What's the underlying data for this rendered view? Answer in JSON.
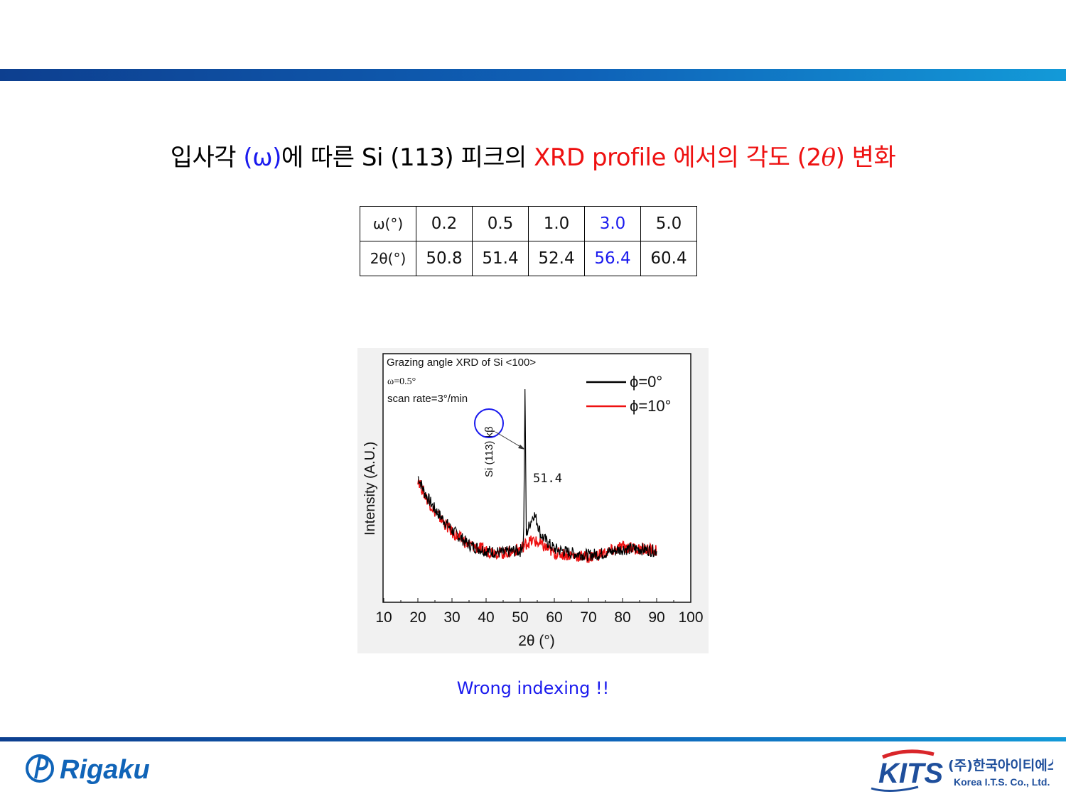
{
  "title": {
    "part1": "입사각 ",
    "omega": "(ω)",
    "part2": "에 따른 Si (113) 피크의 ",
    "red": "XRD profile 에서의 각도 (2",
    "theta": "θ",
    "red_end": ") 변화"
  },
  "table": {
    "rows": [
      {
        "label": "ω(°)",
        "cells": [
          "0.2",
          "0.5",
          "1.0",
          "3.0",
          "5.0"
        ]
      },
      {
        "label": "2θ(°)",
        "cells": [
          "50.8",
          "51.4",
          "52.4",
          "56.4",
          "60.4"
        ]
      }
    ],
    "highlight_color": "#1a1aee"
  },
  "chart_data": {
    "type": "line",
    "title": "Grazing angle XRD of Si <100>",
    "annotations": [
      "ω=0.5°",
      "scan rate=3°/min",
      "Si (113) kβ",
      "51.4"
    ],
    "xlabel": "2θ (°)",
    "ylabel": "Intensity (A.U.)",
    "xlim": [
      10,
      100
    ],
    "xticks": [
      10,
      20,
      30,
      40,
      50,
      60,
      70,
      80,
      90,
      100
    ],
    "legend": "top-right",
    "series": [
      {
        "name": "ϕ=0°",
        "color": "#000000",
        "x": [
          20,
          22,
          25,
          30,
          35,
          40,
          45,
          48,
          50,
          51,
          51.4,
          51.8,
          53,
          54,
          55,
          56,
          58,
          60,
          65,
          70,
          75,
          80,
          85,
          90
        ],
        "y": [
          0.58,
          0.5,
          0.42,
          0.32,
          0.25,
          0.22,
          0.21,
          0.22,
          0.22,
          0.26,
          1.0,
          0.3,
          0.36,
          0.4,
          0.36,
          0.3,
          0.26,
          0.23,
          0.21,
          0.2,
          0.21,
          0.23,
          0.23,
          0.22
        ]
      },
      {
        "name": "ϕ=10°",
        "color": "#ee1111",
        "x": [
          20,
          22,
          25,
          30,
          35,
          40,
          45,
          48,
          50,
          52,
          54,
          56,
          58,
          60,
          65,
          70,
          75,
          80,
          85,
          90
        ],
        "y": [
          0.57,
          0.49,
          0.41,
          0.31,
          0.25,
          0.22,
          0.21,
          0.22,
          0.23,
          0.26,
          0.27,
          0.25,
          0.23,
          0.21,
          0.2,
          0.19,
          0.21,
          0.24,
          0.23,
          0.22
        ]
      }
    ]
  },
  "note": "Wrong indexing !!",
  "footer": {
    "left_logo": "Rigaku",
    "right_logo": "KITS",
    "right_logo_kr": "(주)한국아이티에스",
    "right_logo_en": "Korea I.T.S. Co., Ltd."
  }
}
